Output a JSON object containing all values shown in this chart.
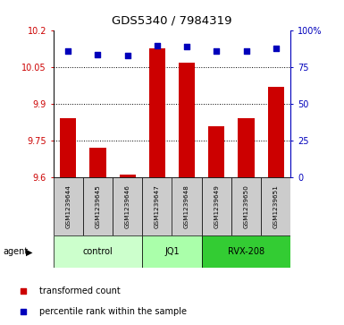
{
  "title": "GDS5340 / 7984319",
  "samples": [
    "GSM1239644",
    "GSM1239645",
    "GSM1239646",
    "GSM1239647",
    "GSM1239648",
    "GSM1239649",
    "GSM1239650",
    "GSM1239651"
  ],
  "red_values": [
    9.84,
    9.72,
    9.61,
    10.13,
    10.07,
    9.81,
    9.84,
    9.97
  ],
  "blue_values_pct": [
    86,
    84,
    83,
    90,
    89,
    86,
    86,
    88
  ],
  "ylim_left": [
    9.6,
    10.2
  ],
  "ylim_right": [
    0,
    100
  ],
  "yticks_left": [
    9.6,
    9.75,
    9.9,
    10.05,
    10.2
  ],
  "yticks_right": [
    0,
    25,
    50,
    75,
    100
  ],
  "ytick_labels_left": [
    "9.6",
    "9.75",
    "9.9",
    "10.05",
    "10.2"
  ],
  "ytick_labels_right": [
    "0",
    "25",
    "50",
    "75",
    "100%"
  ],
  "groups": [
    {
      "label": "control",
      "indices": [
        0,
        1,
        2
      ],
      "color": "#ccffcc"
    },
    {
      "label": "JQ1",
      "indices": [
        3,
        4
      ],
      "color": "#aaffaa"
    },
    {
      "label": "RVX-208",
      "indices": [
        5,
        6,
        7
      ],
      "color": "#33cc33"
    }
  ],
  "agent_label": "agent",
  "red_color": "#cc0000",
  "blue_color": "#0000bb",
  "bar_width": 0.55,
  "legend_red": "transformed count",
  "legend_blue": "percentile rank within the sample",
  "left_tick_color": "#cc0000",
  "right_tick_color": "#0000bb",
  "sample_box_color": "#cccccc",
  "figsize": [
    3.85,
    3.63
  ],
  "dpi": 100
}
